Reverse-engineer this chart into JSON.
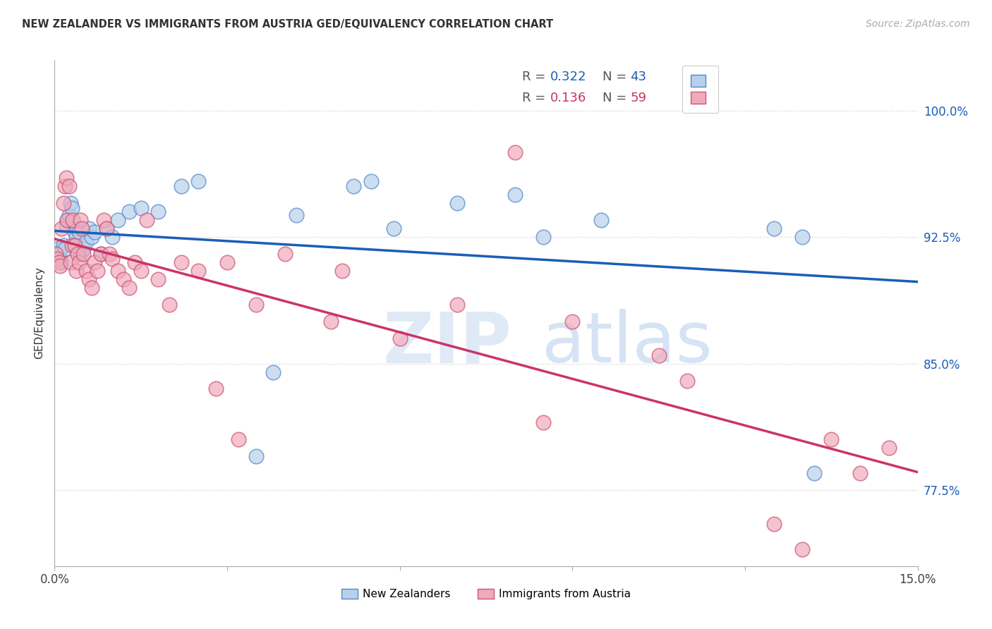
{
  "title": "NEW ZEALANDER VS IMMIGRANTS FROM AUSTRIA GED/EQUIVALENCY CORRELATION CHART",
  "source": "Source: ZipAtlas.com",
  "ylabel": "GED/Equivalency",
  "xlim": [
    0.0,
    15.0
  ],
  "ylim": [
    73.0,
    103.0
  ],
  "yticks": [
    77.5,
    85.0,
    92.5,
    100.0
  ],
  "xticks": [
    0.0,
    3.0,
    6.0,
    9.0,
    12.0,
    15.0
  ],
  "xtick_labels": [
    "0.0%",
    "",
    "",
    "",
    "",
    "15.0%"
  ],
  "ytick_labels": [
    "77.5%",
    "85.0%",
    "92.5%",
    "100.0%"
  ],
  "R1": "0.322",
  "N1": "43",
  "R2": "0.136",
  "N2": "59",
  "color_nz_fill": "#b8d0eb",
  "color_nz_edge": "#5588cc",
  "color_austria_fill": "#f0aabb",
  "color_austria_edge": "#cc5577",
  "color_nz_line": "#1a5eb8",
  "color_austria_line": "#cc3366",
  "nz_x": [
    0.05,
    0.08,
    0.1,
    0.12,
    0.15,
    0.18,
    0.2,
    0.22,
    0.25,
    0.28,
    0.3,
    0.35,
    0.38,
    0.4,
    0.42,
    0.45,
    0.5,
    0.55,
    0.6,
    0.65,
    0.7,
    0.8,
    0.9,
    1.0,
    1.1,
    1.3,
    1.5,
    1.8,
    2.2,
    2.5,
    3.8,
    4.2,
    5.2,
    5.5,
    5.9,
    7.0,
    8.0,
    8.5,
    9.5,
    12.5,
    13.0,
    13.2,
    3.5
  ],
  "nz_y": [
    91.8,
    91.5,
    91.2,
    91.0,
    92.0,
    91.8,
    93.2,
    93.5,
    93.8,
    94.5,
    94.2,
    92.8,
    92.5,
    93.0,
    92.8,
    91.5,
    91.8,
    92.2,
    93.0,
    92.5,
    92.8,
    91.5,
    93.0,
    92.5,
    93.5,
    94.0,
    94.2,
    94.0,
    95.5,
    95.8,
    84.5,
    93.8,
    95.5,
    95.8,
    93.0,
    94.5,
    95.0,
    92.5,
    93.5,
    93.0,
    92.5,
    78.5,
    79.5
  ],
  "austria_x": [
    0.02,
    0.05,
    0.08,
    0.1,
    0.12,
    0.15,
    0.18,
    0.2,
    0.22,
    0.25,
    0.28,
    0.3,
    0.32,
    0.35,
    0.38,
    0.4,
    0.42,
    0.45,
    0.48,
    0.5,
    0.55,
    0.6,
    0.65,
    0.7,
    0.75,
    0.8,
    0.85,
    0.9,
    0.95,
    1.0,
    1.1,
    1.2,
    1.3,
    1.4,
    1.5,
    1.6,
    1.8,
    2.0,
    2.2,
    2.5,
    2.8,
    3.0,
    3.5,
    4.0,
    4.8,
    5.0,
    6.0,
    7.0,
    8.0,
    8.5,
    9.0,
    10.5,
    11.0,
    12.5,
    13.0,
    13.5,
    14.0,
    14.5,
    3.2
  ],
  "austria_y": [
    91.5,
    91.2,
    91.0,
    90.8,
    93.0,
    94.5,
    95.5,
    96.0,
    93.5,
    95.5,
    91.0,
    92.0,
    93.5,
    92.0,
    90.5,
    91.5,
    91.0,
    93.5,
    93.0,
    91.5,
    90.5,
    90.0,
    89.5,
    91.0,
    90.5,
    91.5,
    93.5,
    93.0,
    91.5,
    91.2,
    90.5,
    90.0,
    89.5,
    91.0,
    90.5,
    93.5,
    90.0,
    88.5,
    91.0,
    90.5,
    83.5,
    91.0,
    88.5,
    91.5,
    87.5,
    90.5,
    86.5,
    88.5,
    97.5,
    81.5,
    87.5,
    85.5,
    84.0,
    75.5,
    74.0,
    80.5,
    78.5,
    80.0,
    80.5
  ]
}
